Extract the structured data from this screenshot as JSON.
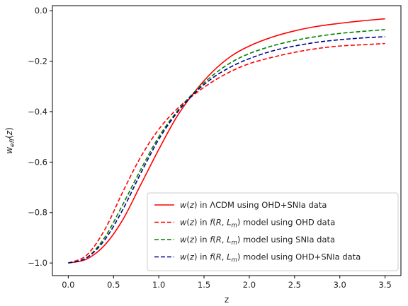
{
  "chart_data": {
    "type": "line",
    "title": "",
    "xlabel": "z",
    "ylabel": "w_eff(z)",
    "xlim": [
      -0.175,
      3.675
    ],
    "ylim": [
      -1.05,
      0.02
    ],
    "x_ticks": [
      0.0,
      0.5,
      1.0,
      1.5,
      2.0,
      2.5,
      3.0,
      3.5
    ],
    "x_tick_labels": [
      "0.0",
      "0.5",
      "1.0",
      "1.5",
      "2.0",
      "2.5",
      "3.0",
      "3.5"
    ],
    "y_ticks": [
      0.0,
      -0.2,
      -0.4,
      -0.6,
      -0.8,
      -1.0
    ],
    "y_tick_labels": [
      "0.0",
      "−0.2",
      "−0.4",
      "−0.6",
      "−0.8",
      "−1.0"
    ],
    "grid": false,
    "legend_position": "lower-right",
    "x": [
      0.0,
      0.2,
      0.4,
      0.6,
      0.8,
      1.0,
      1.2,
      1.4,
      1.6,
      1.8,
      2.0,
      2.25,
      2.5,
      2.75,
      3.0,
      3.25,
      3.5
    ],
    "series": [
      {
        "name_prefix": "w(z) in ",
        "name_suffix": " using OHD+SNIa data",
        "model": "ΛCDM",
        "color": "#ff0000",
        "style": "solid",
        "values": [
          -1.0,
          -0.985,
          -0.93,
          -0.83,
          -0.69,
          -0.55,
          -0.42,
          -0.32,
          -0.24,
          -0.18,
          -0.14,
          -0.105,
          -0.08,
          -0.062,
          -0.05,
          -0.04,
          -0.032
        ]
      },
      {
        "name_prefix": "w(z) in ",
        "name_suffix": " model using OHD data",
        "model": "f(R, L_m)",
        "color": "#ff0000",
        "style": "dashed",
        "values": [
          -1.0,
          -0.97,
          -0.87,
          -0.72,
          -0.58,
          -0.47,
          -0.39,
          -0.33,
          -0.28,
          -0.24,
          -0.21,
          -0.185,
          -0.165,
          -0.15,
          -0.14,
          -0.135,
          -0.13
        ]
      },
      {
        "name_prefix": "w(z) in ",
        "name_suffix": " model using SNIa data",
        "model": "f(R, L_m)",
        "color": "#008000",
        "style": "dashed",
        "values": [
          -1.0,
          -0.98,
          -0.9,
          -0.77,
          -0.63,
          -0.5,
          -0.4,
          -0.32,
          -0.255,
          -0.205,
          -0.17,
          -0.14,
          -0.118,
          -0.102,
          -0.09,
          -0.082,
          -0.075
        ]
      },
      {
        "name_prefix": "w(z) in ",
        "name_suffix": " model using OHD+SNIa data",
        "model": "f(R, L_m)",
        "color": "#00008b",
        "style": "dashed",
        "values": [
          -1.0,
          -0.98,
          -0.91,
          -0.79,
          -0.645,
          -0.51,
          -0.405,
          -0.325,
          -0.265,
          -0.222,
          -0.19,
          -0.16,
          -0.14,
          -0.125,
          -0.115,
          -0.108,
          -0.103
        ]
      }
    ]
  }
}
